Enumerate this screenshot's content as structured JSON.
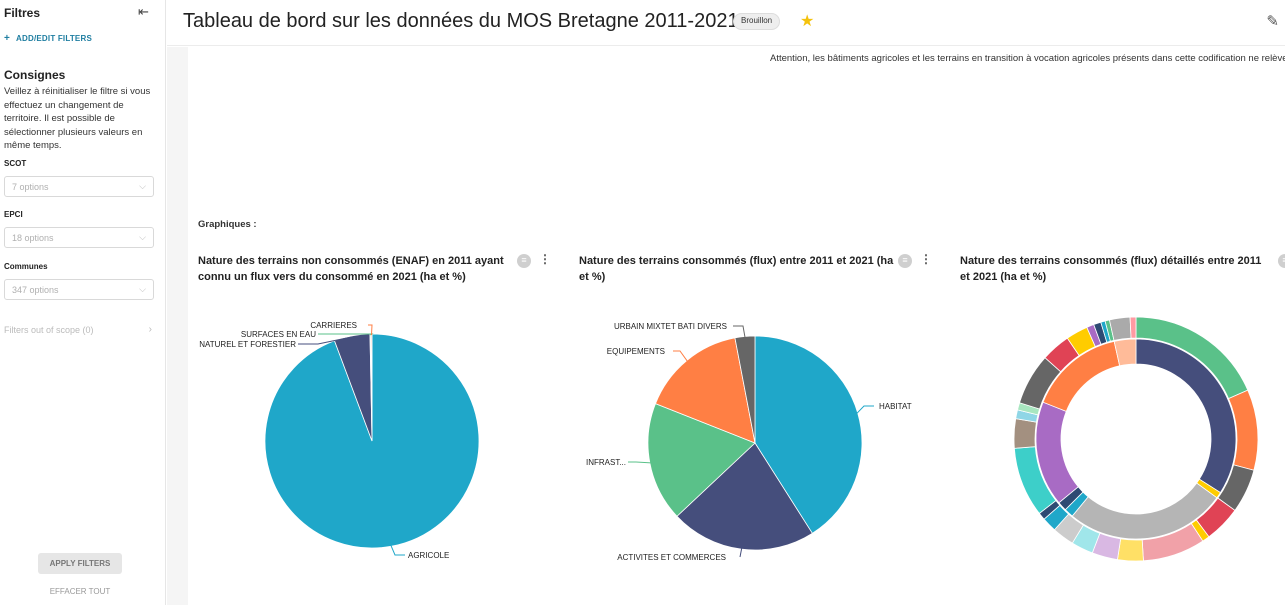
{
  "sidebar": {
    "title": "Filtres",
    "add_filters": "ADD/EDIT FILTERS",
    "consignes_title": "Consignes",
    "consignes_text": "Veillez à réinitialiser le filtre si vous effectuez un changement de territoire. Il est possible de sélectionner plusieurs valeurs en même temps.",
    "filters": [
      {
        "label": "SCOT",
        "placeholder": "7 options"
      },
      {
        "label": "EPCI",
        "placeholder": "18 options"
      },
      {
        "label": "Communes",
        "placeholder": "347 options"
      }
    ],
    "out_of_scope": "Filters out of scope (0)",
    "apply_label": "APPLY FILTERS",
    "clear_label": "EFFACER TOUT"
  },
  "header": {
    "title": "Tableau de bord sur les données du MOS Bretagne 2011-2021",
    "badge": "Brouillon"
  },
  "main": {
    "note": "Attention, les bâtiments agricoles et les terrains en transition à vocation agricoles présents dans cette codification ne relèvent pas de la consommation (ENAF) mais de l'artificialisation.",
    "graphs_heading": "Graphiques :"
  },
  "colors": {
    "teal": "#1fa7c9",
    "navy": "#454e7c",
    "green": "#5ac189",
    "orange": "#ff7f44",
    "grey": "#666666",
    "red": "#e04355",
    "accent": "#1f7ea1",
    "star": "#f4c20d"
  },
  "chart_data": [
    {
      "type": "pie",
      "title": "Nature des terrains non consommés (ENAF) en 2011 ayant connu un flux vers du consommé en 2021 (ha et %)",
      "labels": [
        "AGRICOLE",
        "NATUREL ET FORESTIER",
        "SURFACES EN EAU",
        "CARRIERES"
      ],
      "values": [
        94.3,
        5.4,
        0.15,
        0.15
      ],
      "colors": [
        "#1fa7c9",
        "#454e7c",
        "#5ac189",
        "#ff7f44"
      ]
    },
    {
      "type": "pie",
      "title": "Nature des terrains consommés (flux) entre 2011 et 2021 (ha et %)",
      "labels": [
        "HABITAT",
        "ACTIVITES ET COMMERCES",
        "INFRAST...",
        "EQUIPEMENTS",
        "URBAIN MIXTET BATI DIVERS"
      ],
      "values": [
        41,
        22,
        18,
        16,
        3
      ],
      "colors": [
        "#1fa7c9",
        "#454e7c",
        "#5ac189",
        "#ff7f44",
        "#666666"
      ]
    },
    {
      "type": "pie",
      "title": "Nature des terrains consommés (flux) détaillés entre 2011 et 2021 (ha et %)",
      "inner_ring": {
        "values": [
          34,
          1,
          26,
          1.5,
          1.5,
          17,
          15.5,
          3.5
        ],
        "colors": [
          "#454e7c",
          "#ffcc00",
          "#b5b5b5",
          "#1fa7c9",
          "#2e4a73",
          "#a86bc4",
          "#ff7f44",
          "#ffbb99"
        ]
      },
      "outer_ring": {
        "values": [
          19,
          11,
          6,
          5,
          1,
          8.5,
          3.5,
          3.5,
          3,
          3,
          2,
          1,
          9.5,
          4,
          1.2,
          1,
          7,
          4,
          3,
          1,
          1,
          0.6,
          0.6,
          2.8,
          0.8
        ],
        "colors": [
          "#5ac189",
          "#ff7f44",
          "#666666",
          "#e04355",
          "#ffcc00",
          "#f1a1a8",
          "#ffe066",
          "#d9b8e3",
          "#a0e6ea",
          "#cccccc",
          "#1fa7c9",
          "#2e4a73",
          "#3dcfc9",
          "#a39080",
          "#8fd6e6",
          "#a8e6c0",
          "#666666",
          "#e04355",
          "#ffcc00",
          "#a86bc4",
          "#2e4a73",
          "#1fa7c9",
          "#5ac189",
          "#aaaaaa",
          "#ff9aa2"
        ]
      }
    }
  ]
}
